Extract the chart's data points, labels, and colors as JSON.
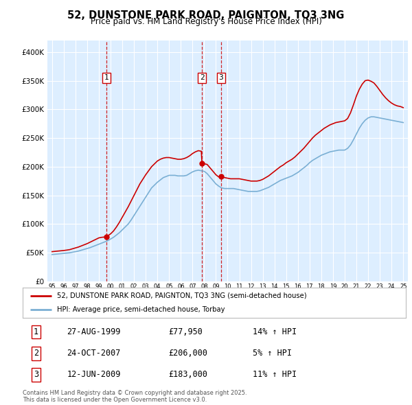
{
  "title": "52, DUNSTONE PARK ROAD, PAIGNTON, TQ3 3NG",
  "subtitle": "Price paid vs. HM Land Registry's House Price Index (HPI)",
  "legend_line1": "52, DUNSTONE PARK ROAD, PAIGNTON, TQ3 3NG (semi-detached house)",
  "legend_line2": "HPI: Average price, semi-detached house, Torbay",
  "footnote": "Contains HM Land Registry data © Crown copyright and database right 2025.\nThis data is licensed under the Open Government Licence v3.0.",
  "transactions": [
    {
      "num": 1,
      "date": "27-AUG-1999",
      "price": "£77,950",
      "pct": "14% ↑ HPI",
      "year": 1999.65,
      "value": 77950
    },
    {
      "num": 2,
      "date": "24-OCT-2007",
      "price": "£206,000",
      "pct": "5% ↑ HPI",
      "year": 2007.81,
      "value": 206000
    },
    {
      "num": 3,
      "date": "12-JUN-2009",
      "price": "£183,000",
      "pct": "11% ↑ HPI",
      "year": 2009.44,
      "value": 183000
    }
  ],
  "red_color": "#cc0000",
  "blue_color": "#7aafd4",
  "bg_color": "#ddeeff",
  "grid_color": "#ffffff",
  "ylim": [
    0,
    420000
  ],
  "yticks": [
    0,
    50000,
    100000,
    150000,
    200000,
    250000,
    300000,
    350000,
    400000
  ],
  "ytick_labels": [
    "£0",
    "£50K",
    "£100K",
    "£150K",
    "£200K",
    "£250K",
    "£300K",
    "£350K",
    "£400K"
  ],
  "xlim_start": 1994.6,
  "xlim_end": 2025.4,
  "hpi_years": [
    1995,
    1995.25,
    1995.5,
    1995.75,
    1996,
    1996.25,
    1996.5,
    1996.75,
    1997,
    1997.25,
    1997.5,
    1997.75,
    1998,
    1998.25,
    1998.5,
    1998.75,
    1999,
    1999.25,
    1999.5,
    1999.75,
    2000,
    2000.25,
    2000.5,
    2000.75,
    2001,
    2001.25,
    2001.5,
    2001.75,
    2002,
    2002.25,
    2002.5,
    2002.75,
    2003,
    2003.25,
    2003.5,
    2003.75,
    2004,
    2004.25,
    2004.5,
    2004.75,
    2005,
    2005.25,
    2005.5,
    2005.75,
    2006,
    2006.25,
    2006.5,
    2006.75,
    2007,
    2007.25,
    2007.5,
    2007.75,
    2008,
    2008.25,
    2008.5,
    2008.75,
    2009,
    2009.25,
    2009.5,
    2009.75,
    2010,
    2010.25,
    2010.5,
    2010.75,
    2011,
    2011.25,
    2011.5,
    2011.75,
    2012,
    2012.25,
    2012.5,
    2012.75,
    2013,
    2013.25,
    2013.5,
    2013.75,
    2014,
    2014.25,
    2014.5,
    2014.75,
    2015,
    2015.25,
    2015.5,
    2015.75,
    2016,
    2016.25,
    2016.5,
    2016.75,
    2017,
    2017.25,
    2017.5,
    2017.75,
    2018,
    2018.25,
    2018.5,
    2018.75,
    2019,
    2019.25,
    2019.5,
    2019.75,
    2020,
    2020.25,
    2020.5,
    2020.75,
    2021,
    2021.25,
    2021.5,
    2021.75,
    2022,
    2022.25,
    2022.5,
    2022.75,
    2023,
    2023.25,
    2023.5,
    2023.75,
    2024,
    2024.25,
    2024.5,
    2024.75,
    2025
  ],
  "hpi_values": [
    47000,
    47500,
    48000,
    48500,
    49000,
    49500,
    50000,
    51000,
    52000,
    53000,
    54500,
    56000,
    57500,
    59000,
    61000,
    63000,
    65000,
    67000,
    69000,
    71000,
    74000,
    77000,
    81000,
    85000,
    90000,
    95000,
    100000,
    107000,
    115000,
    123000,
    131000,
    139000,
    147000,
    155000,
    163000,
    168000,
    173000,
    177000,
    181000,
    183000,
    185000,
    185000,
    185000,
    184000,
    184000,
    184000,
    185000,
    188000,
    191000,
    193000,
    194000,
    193000,
    192000,
    188000,
    182000,
    176000,
    170000,
    166000,
    163000,
    162000,
    162000,
    162000,
    162000,
    161000,
    160000,
    159000,
    158000,
    157000,
    157000,
    157000,
    157000,
    158000,
    160000,
    162000,
    164000,
    167000,
    170000,
    173000,
    176000,
    178000,
    180000,
    182000,
    184000,
    187000,
    190000,
    194000,
    198000,
    202000,
    207000,
    211000,
    214000,
    217000,
    220000,
    222000,
    224000,
    226000,
    227000,
    228000,
    229000,
    229000,
    229000,
    232000,
    238000,
    247000,
    257000,
    267000,
    275000,
    281000,
    285000,
    287000,
    287000,
    286000,
    285000,
    284000,
    283000,
    282000,
    281000,
    280000,
    279000,
    278000,
    277000
  ],
  "red_years": [
    1995,
    1995.25,
    1995.5,
    1995.75,
    1996,
    1996.25,
    1996.5,
    1996.75,
    1997,
    1997.25,
    1997.5,
    1997.75,
    1998,
    1998.25,
    1998.5,
    1998.75,
    1999,
    1999.25,
    1999.5,
    1999.65,
    2000,
    2000.25,
    2000.5,
    2000.75,
    2001,
    2001.25,
    2001.5,
    2001.75,
    2002,
    2002.25,
    2002.5,
    2002.75,
    2003,
    2003.25,
    2003.5,
    2003.75,
    2004,
    2004.25,
    2004.5,
    2004.75,
    2005,
    2005.25,
    2005.5,
    2005.75,
    2006,
    2006.25,
    2006.5,
    2006.75,
    2007,
    2007.25,
    2007.5,
    2007.75,
    2007.81,
    2008.25,
    2008.5,
    2008.75,
    2009,
    2009.25,
    2009.44,
    2009.75,
    2010,
    2010.25,
    2010.5,
    2010.75,
    2011,
    2011.25,
    2011.5,
    2011.75,
    2012,
    2012.25,
    2012.5,
    2012.75,
    2013,
    2013.25,
    2013.5,
    2013.75,
    2014,
    2014.25,
    2014.5,
    2014.75,
    2015,
    2015.25,
    2015.5,
    2015.75,
    2016,
    2016.25,
    2016.5,
    2016.75,
    2017,
    2017.25,
    2017.5,
    2017.75,
    2018,
    2018.25,
    2018.5,
    2018.75,
    2019,
    2019.25,
    2019.5,
    2019.75,
    2020,
    2020.25,
    2020.5,
    2020.75,
    2021,
    2021.25,
    2021.5,
    2021.75,
    2022,
    2022.25,
    2022.5,
    2022.75,
    2023,
    2023.25,
    2023.5,
    2023.75,
    2024,
    2024.25,
    2024.5,
    2024.75,
    2025
  ],
  "red_values": [
    52000,
    52500,
    53000,
    53500,
    54000,
    54700,
    55500,
    57000,
    58500,
    60000,
    62000,
    64000,
    66000,
    68500,
    71000,
    73500,
    76000,
    77000,
    77500,
    77950,
    83000,
    88000,
    95000,
    103000,
    112000,
    121000,
    130000,
    140000,
    150000,
    160000,
    170000,
    178000,
    186000,
    193000,
    200000,
    205000,
    210000,
    213000,
    215000,
    216000,
    216000,
    215000,
    214000,
    213000,
    213000,
    214000,
    216000,
    219000,
    223000,
    226000,
    228000,
    227000,
    206000,
    204000,
    198000,
    192000,
    186000,
    182000,
    183000,
    181000,
    180000,
    179000,
    179000,
    179000,
    179000,
    178000,
    177000,
    176000,
    175000,
    175000,
    175000,
    176000,
    178000,
    181000,
    184000,
    188000,
    192000,
    196000,
    200000,
    203000,
    207000,
    210000,
    213000,
    217000,
    222000,
    227000,
    232000,
    238000,
    244000,
    250000,
    255000,
    259000,
    263000,
    267000,
    270000,
    273000,
    275000,
    277000,
    278000,
    279000,
    280000,
    284000,
    294000,
    308000,
    323000,
    335000,
    344000,
    350000,
    351000,
    349000,
    346000,
    340000,
    333000,
    326000,
    320000,
    315000,
    311000,
    308000,
    306000,
    305000,
    303000
  ]
}
